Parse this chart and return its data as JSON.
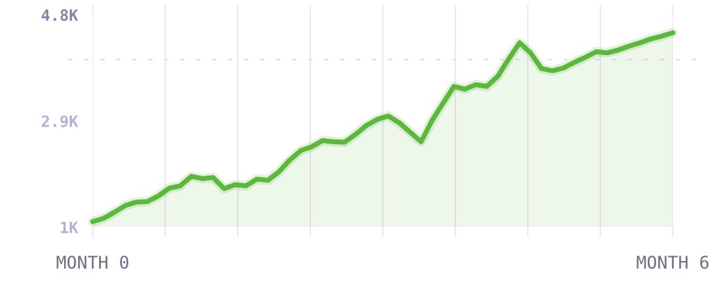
{
  "chart_data": {
    "type": "area",
    "categories": [
      "MONTH 0",
      null,
      null,
      null,
      null,
      null,
      null,
      null,
      null,
      null,
      null,
      null,
      null,
      null,
      null,
      null,
      null,
      null,
      null,
      null,
      null,
      null,
      null,
      null,
      null,
      null,
      null,
      null,
      null,
      null,
      null,
      null,
      null,
      null,
      null,
      null,
      null,
      null,
      null,
      null,
      null,
      null,
      null,
      null,
      null,
      null,
      null,
      null,
      null,
      null,
      null,
      null,
      null,
      "MONTH 6"
    ],
    "values": [
      1100,
      1160,
      1270,
      1390,
      1450,
      1460,
      1560,
      1700,
      1740,
      1910,
      1870,
      1890,
      1690,
      1760,
      1740,
      1860,
      1840,
      1990,
      2200,
      2370,
      2440,
      2550,
      2530,
      2520,
      2660,
      2820,
      2930,
      2990,
      2870,
      2700,
      2530,
      2910,
      3220,
      3520,
      3470,
      3550,
      3520,
      3700,
      4010,
      4300,
      4120,
      3840,
      3800,
      3850,
      3950,
      4040,
      4140,
      4120,
      4170,
      4240,
      4300,
      4370,
      4420,
      4480
    ],
    "color": "#5cb83c",
    "ylim": [
      1000,
      4800
    ],
    "yticks": [
      {
        "value": 1000,
        "label": "1K"
      },
      {
        "value": 2900,
        "label": "2.9K"
      },
      {
        "value": 4800,
        "label": "4.8K"
      }
    ],
    "grid": "x",
    "ref_lines": [
      {
        "axis": "y",
        "value": 4000,
        "color": "#e2daf0",
        "line_style": "dashed"
      }
    ]
  }
}
